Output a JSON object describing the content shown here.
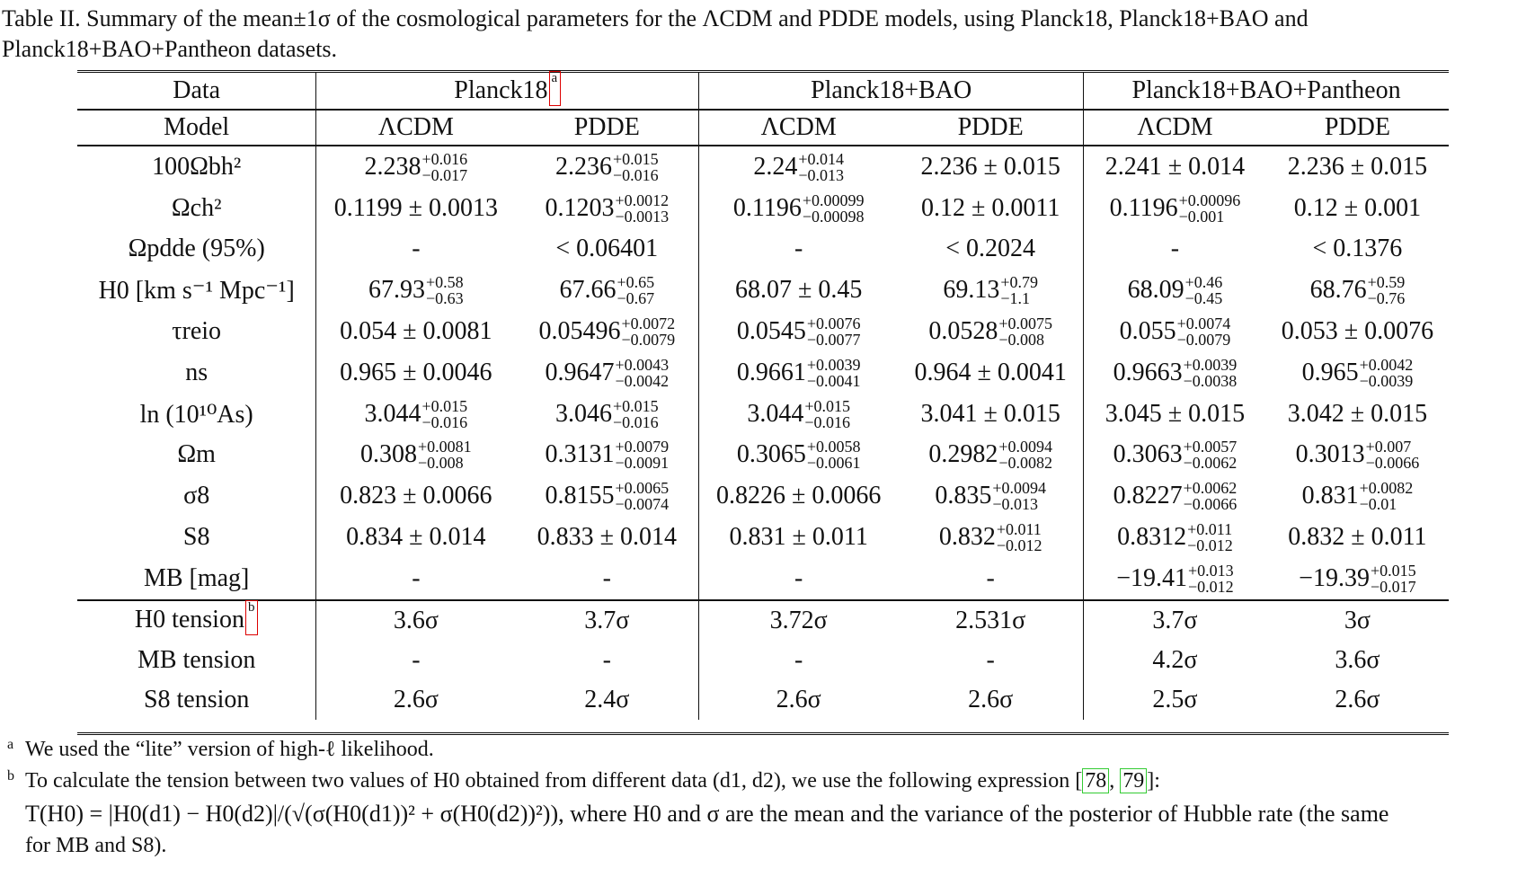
{
  "caption": "Table II. Summary of the mean±1σ of the cosmological parameters for the ΛCDM and PDDE models, using Planck18, Planck18+BAO and Planck18+BAO+Pantheon datasets.",
  "header": {
    "data_label": "Data",
    "model_label": "Model",
    "datasets": [
      "Planck18",
      "Planck18+BAO",
      "Planck18+BAO+Pantheon"
    ],
    "planck_footnote_mark": "a",
    "models": [
      "ΛCDM",
      "PDDE",
      "ΛCDM",
      "PDDE",
      "ΛCDM",
      "PDDE"
    ]
  },
  "params": [
    {
      "label": "100Ωbh²",
      "values": [
        {
          "v": "2.238",
          "up": "+0.016",
          "dn": "−0.017"
        },
        {
          "v": "2.236",
          "up": "+0.015",
          "dn": "−0.016"
        },
        {
          "v": "2.24",
          "up": "+0.014",
          "dn": "−0.013"
        },
        {
          "v": "2.236 ± 0.015"
        },
        {
          "v": "2.241 ± 0.014"
        },
        {
          "v": "2.236 ± 0.015"
        }
      ]
    },
    {
      "label": "Ωch²",
      "values": [
        {
          "v": "0.1199 ± 0.0013"
        },
        {
          "v": "0.1203",
          "up": "+0.0012",
          "dn": "−0.0013"
        },
        {
          "v": "0.1196",
          "up": "+0.00099",
          "dn": "−0.00098"
        },
        {
          "v": "0.12 ± 0.0011"
        },
        {
          "v": "0.1196",
          "up": "+0.00096",
          "dn": "−0.001"
        },
        {
          "v": "0.12 ± 0.001"
        }
      ]
    },
    {
      "label": "Ωpdde (95%)",
      "values": [
        {
          "v": "-"
        },
        {
          "v": "< 0.06401"
        },
        {
          "v": "-"
        },
        {
          "v": "< 0.2024"
        },
        {
          "v": "-"
        },
        {
          "v": "< 0.1376"
        }
      ]
    },
    {
      "label": "H0 [km s⁻¹ Mpc⁻¹]",
      "values": [
        {
          "v": "67.93",
          "up": "+0.58",
          "dn": "−0.63"
        },
        {
          "v": "67.66",
          "up": "+0.65",
          "dn": "−0.67"
        },
        {
          "v": "68.07 ± 0.45"
        },
        {
          "v": "69.13",
          "up": "+0.79",
          "dn": "−1.1"
        },
        {
          "v": "68.09",
          "up": "+0.46",
          "dn": "−0.45"
        },
        {
          "v": "68.76",
          "up": "+0.59",
          "dn": "−0.76"
        }
      ]
    },
    {
      "label": "τreio",
      "values": [
        {
          "v": "0.054 ± 0.0081"
        },
        {
          "v": "0.05496",
          "up": "+0.0072",
          "dn": "−0.0079"
        },
        {
          "v": "0.0545",
          "up": "+0.0076",
          "dn": "−0.0077"
        },
        {
          "v": "0.0528",
          "up": "+0.0075",
          "dn": "−0.008"
        },
        {
          "v": "0.055",
          "up": "+0.0074",
          "dn": "−0.0079"
        },
        {
          "v": "0.053 ± 0.0076"
        }
      ]
    },
    {
      "label": "ns",
      "values": [
        {
          "v": "0.965 ± 0.0046"
        },
        {
          "v": "0.9647",
          "up": "+0.0043",
          "dn": "−0.0042"
        },
        {
          "v": "0.9661",
          "up": "+0.0039",
          "dn": "−0.0041"
        },
        {
          "v": "0.964 ± 0.0041"
        },
        {
          "v": "0.9663",
          "up": "+0.0039",
          "dn": "−0.0038"
        },
        {
          "v": "0.965",
          "up": "+0.0042",
          "dn": "−0.0039"
        }
      ]
    },
    {
      "label": "ln (10¹⁰As)",
      "values": [
        {
          "v": "3.044",
          "up": "+0.015",
          "dn": "−0.016"
        },
        {
          "v": "3.046",
          "up": "+0.015",
          "dn": "−0.016"
        },
        {
          "v": "3.044",
          "up": "+0.015",
          "dn": "−0.016"
        },
        {
          "v": "3.041 ± 0.015"
        },
        {
          "v": "3.045 ± 0.015"
        },
        {
          "v": "3.042 ± 0.015"
        }
      ]
    },
    {
      "label": "Ωm",
      "values": [
        {
          "v": "0.308",
          "up": "+0.0081",
          "dn": "−0.008"
        },
        {
          "v": "0.3131",
          "up": "+0.0079",
          "dn": "−0.0091"
        },
        {
          "v": "0.3065",
          "up": "+0.0058",
          "dn": "−0.0061"
        },
        {
          "v": "0.2982",
          "up": "+0.0094",
          "dn": "−0.0082"
        },
        {
          "v": "0.3063",
          "up": "+0.0057",
          "dn": "−0.0062"
        },
        {
          "v": "0.3013",
          "up": "+0.007",
          "dn": "−0.0066"
        }
      ]
    },
    {
      "label": "σ8",
      "values": [
        {
          "v": "0.823 ± 0.0066"
        },
        {
          "v": "0.8155",
          "up": "+0.0065",
          "dn": "−0.0074"
        },
        {
          "v": "0.8226 ± 0.0066"
        },
        {
          "v": "0.835",
          "up": "+0.0094",
          "dn": "−0.013"
        },
        {
          "v": "0.8227",
          "up": "+0.0062",
          "dn": "−0.0066"
        },
        {
          "v": "0.831",
          "up": "+0.0082",
          "dn": "−0.01"
        }
      ]
    },
    {
      "label": "S8",
      "values": [
        {
          "v": "0.834 ± 0.014"
        },
        {
          "v": "0.833 ± 0.014"
        },
        {
          "v": "0.831 ± 0.011"
        },
        {
          "v": "0.832",
          "up": "+0.011",
          "dn": "−0.012"
        },
        {
          "v": "0.8312",
          "up": "+0.011",
          "dn": "−0.012"
        },
        {
          "v": "0.832 ± 0.011"
        }
      ]
    },
    {
      "label": "MB [mag]",
      "values": [
        {
          "v": "-"
        },
        {
          "v": "-"
        },
        {
          "v": "-"
        },
        {
          "v": "-"
        },
        {
          "v": "−19.41",
          "up": "+0.013",
          "dn": "−0.012"
        },
        {
          "v": "−19.39",
          "up": "+0.015",
          "dn": "−0.017"
        }
      ]
    }
  ],
  "tensions": [
    {
      "label": "H0 tension",
      "mark": "b",
      "values": [
        "3.6σ",
        "3.7σ",
        "3.72σ",
        "2.531σ",
        "3.7σ",
        "3σ"
      ]
    },
    {
      "label": "MB tension",
      "values": [
        "-",
        "-",
        "-",
        "-",
        "4.2σ",
        "3.6σ"
      ]
    },
    {
      "label": "S8 tension",
      "values": [
        "2.6σ",
        "2.4σ",
        "2.6σ",
        "2.6σ",
        "2.5σ",
        "2.6σ"
      ]
    }
  ],
  "footnotes": {
    "a_mark": "a",
    "a_text": "We used the “lite” version of high-ℓ likelihood.",
    "b_mark": "b",
    "b_text_before": "To calculate the tension between two values of H0 obtained from different data (d1, d2), we use the following expression",
    "b_cite_1": "78",
    "b_cite_2": "79",
    "b_formula": "T(H0) = |H0(d1) − H0(d2)|/(√(σ(H0(d1))² + σ(H0(d2))²)), where H0 and σ are the mean and the variance of the posterior of Hubble rate (the same",
    "b_formula_end": "for MB and S8)."
  }
}
